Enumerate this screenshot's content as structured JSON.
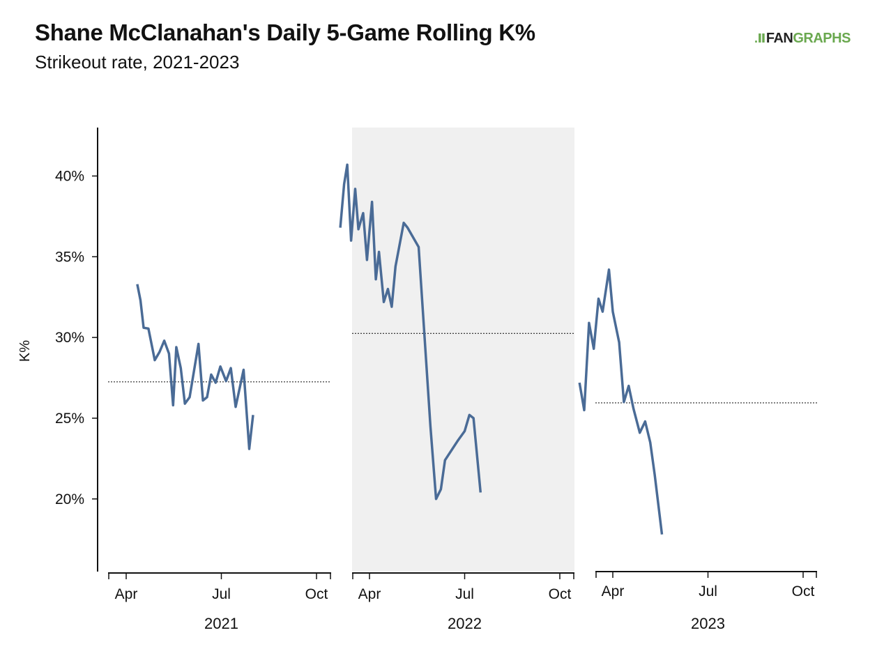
{
  "header": {
    "title": "Shane McClanahan's Daily 5-Game Rolling K%",
    "subtitle": "Strikeout rate, 2021-2023"
  },
  "logo": {
    "mark": ".Ⅱ",
    "fan": "FAN",
    "graphs": "GRAPHS"
  },
  "chart_data": {
    "type": "line",
    "ylabel": "K%",
    "ylim": [
      0.155,
      0.43
    ],
    "yticks": [
      0.2,
      0.25,
      0.3,
      0.35,
      0.4
    ],
    "ytick_labels": [
      "20%",
      "25%",
      "30%",
      "35%",
      "40%"
    ],
    "line_color": "#4a6b96",
    "highlight_color": "#f0f0f0",
    "grid": false,
    "panels": [
      {
        "year": "2021",
        "x_ticks": [
          "Apr",
          "Jul",
          "Oct"
        ],
        "highlight": false,
        "season_average": 0.2725,
        "points": [
          [
            4.35,
            0.333
          ],
          [
            4.45,
            0.323
          ],
          [
            4.55,
            0.306
          ],
          [
            4.7,
            0.3055
          ],
          [
            4.9,
            0.286
          ],
          [
            5.05,
            0.291
          ],
          [
            5.2,
            0.298
          ],
          [
            5.35,
            0.29
          ],
          [
            5.48,
            0.258
          ],
          [
            5.58,
            0.294
          ],
          [
            5.72,
            0.281
          ],
          [
            5.85,
            0.259
          ],
          [
            6.0,
            0.263
          ],
          [
            6.28,
            0.296
          ],
          [
            6.42,
            0.261
          ],
          [
            6.55,
            0.263
          ],
          [
            6.68,
            0.277
          ],
          [
            6.82,
            0.272
          ],
          [
            6.97,
            0.282
          ],
          [
            7.15,
            0.273
          ],
          [
            7.3,
            0.281
          ],
          [
            7.45,
            0.257
          ],
          [
            7.7,
            0.28
          ],
          [
            7.88,
            0.231
          ],
          [
            8.0,
            0.252
          ]
        ]
      },
      {
        "year": "2022",
        "x_ticks": [
          "Apr",
          "Jul",
          "Oct"
        ],
        "highlight": true,
        "season_average": 0.3025,
        "points": [
          [
            3.08,
            0.368
          ],
          [
            3.2,
            0.395
          ],
          [
            3.3,
            0.407
          ],
          [
            3.42,
            0.36
          ],
          [
            3.55,
            0.392
          ],
          [
            3.65,
            0.367
          ],
          [
            3.8,
            0.377
          ],
          [
            3.92,
            0.348
          ],
          [
            4.08,
            0.384
          ],
          [
            4.2,
            0.336
          ],
          [
            4.3,
            0.353
          ],
          [
            4.45,
            0.322
          ],
          [
            4.58,
            0.33
          ],
          [
            4.7,
            0.319
          ],
          [
            4.82,
            0.344
          ],
          [
            5.08,
            0.371
          ],
          [
            5.2,
            0.368
          ],
          [
            5.55,
            0.356
          ],
          [
            5.92,
            0.245
          ],
          [
            6.1,
            0.2
          ],
          [
            6.25,
            0.206
          ],
          [
            6.38,
            0.224
          ],
          [
            6.78,
            0.236
          ],
          [
            7.0,
            0.242
          ],
          [
            7.15,
            0.252
          ],
          [
            7.28,
            0.25
          ],
          [
            7.5,
            0.204
          ]
        ]
      },
      {
        "year": "2023",
        "x_ticks": [
          "Apr",
          "Jul",
          "Oct"
        ],
        "highlight": false,
        "season_average": 0.2595,
        "points": [
          [
            2.95,
            0.272
          ],
          [
            3.1,
            0.255
          ],
          [
            3.25,
            0.309
          ],
          [
            3.4,
            0.293
          ],
          [
            3.55,
            0.324
          ],
          [
            3.68,
            0.316
          ],
          [
            3.88,
            0.342
          ],
          [
            4.0,
            0.316
          ],
          [
            4.2,
            0.297
          ],
          [
            4.35,
            0.26
          ],
          [
            4.5,
            0.27
          ],
          [
            4.65,
            0.256
          ],
          [
            4.85,
            0.241
          ],
          [
            5.02,
            0.248
          ],
          [
            5.18,
            0.235
          ],
          [
            5.32,
            0.215
          ],
          [
            5.55,
            0.178
          ]
        ]
      }
    ]
  }
}
